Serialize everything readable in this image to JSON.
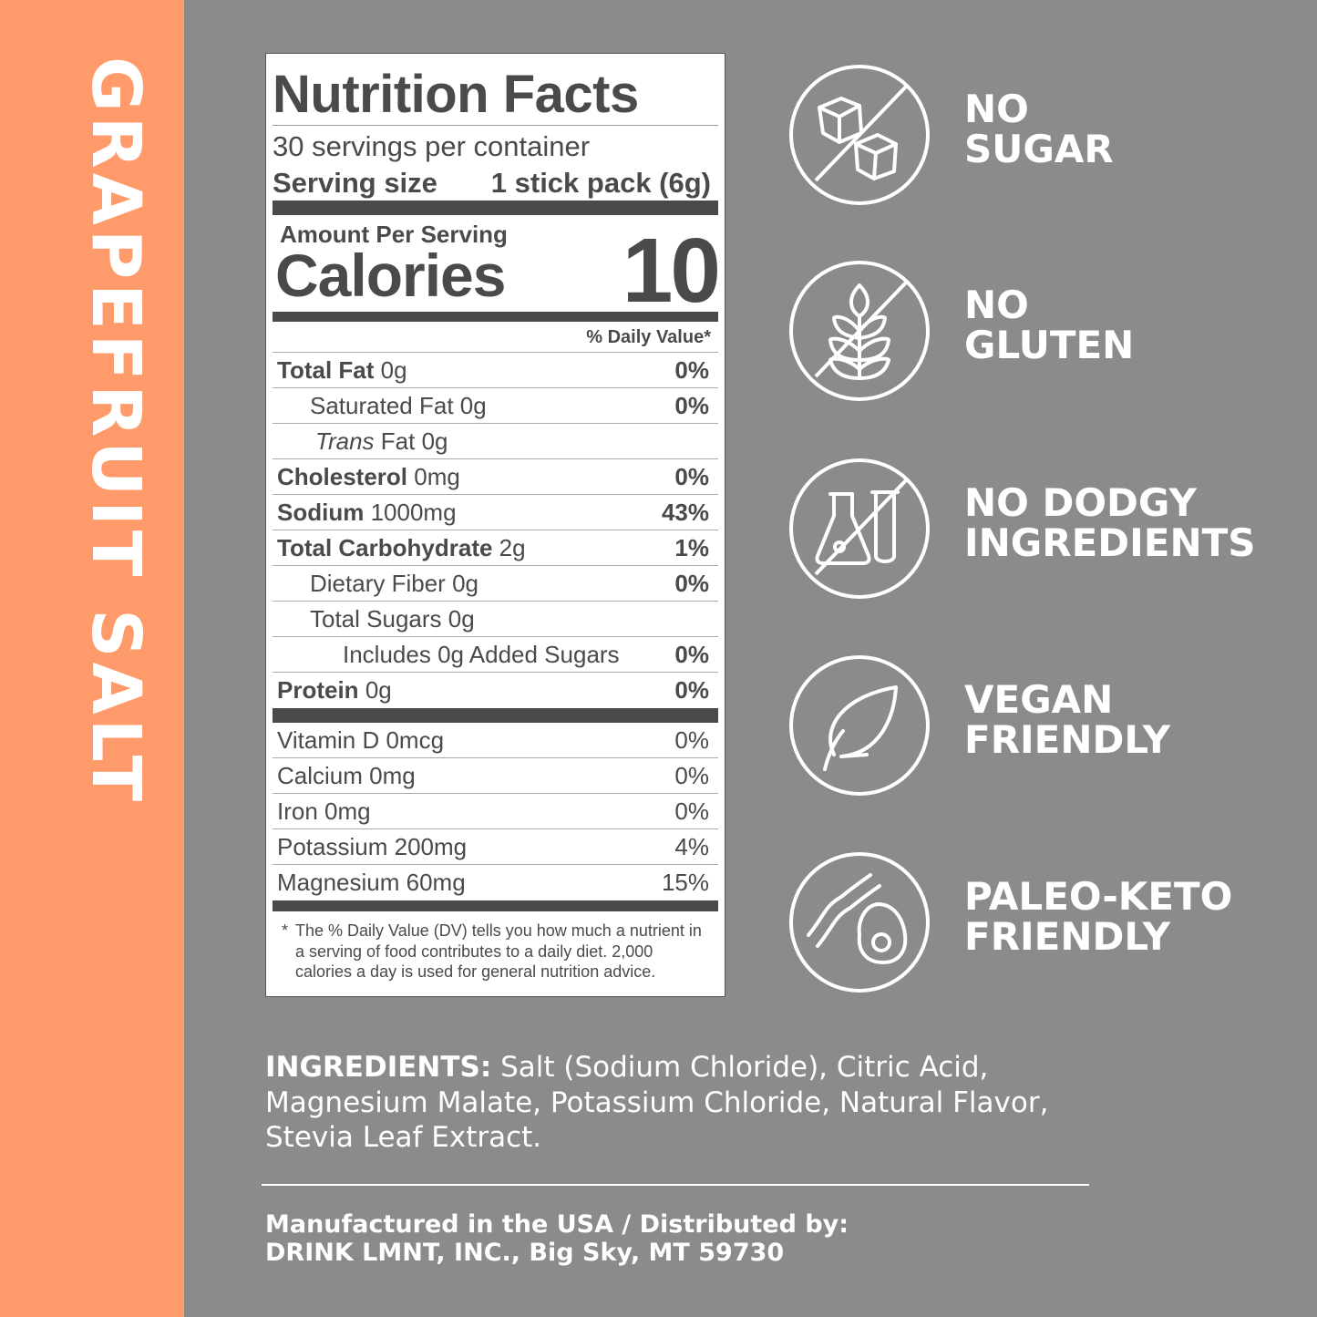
{
  "flavor": "GRAPEFRUIT SALT",
  "colors": {
    "accent": "#ff9b6b",
    "background": "#8a8b8d",
    "label_text": "#4a4a4c"
  },
  "nutrition": {
    "title": "Nutrition Facts",
    "servings": "30 servings per container",
    "serving_size_label": "Serving size",
    "serving_size_value": "1 stick pack (6g)",
    "amount_per_serving": "Amount Per Serving",
    "calories_label": "Calories",
    "calories_value": "10",
    "dv_header": "% Daily Value*",
    "rows": [
      {
        "name": "Total Fat",
        "amount": "0g",
        "dv": "0%",
        "bold": true,
        "indent": 0
      },
      {
        "name": "Saturated Fat",
        "amount": "0g",
        "dv": "0%",
        "bold": false,
        "indent": 1
      },
      {
        "italic": "Trans",
        "name": "Fat",
        "amount": "0g",
        "dv": "",
        "bold": false,
        "indent": 1
      },
      {
        "name": "Cholesterol",
        "amount": "0mg",
        "dv": "0%",
        "bold": true,
        "indent": 0
      },
      {
        "name": "Sodium",
        "amount": "1000mg",
        "dv": "43%",
        "bold": true,
        "indent": 0
      },
      {
        "name": "Total Carbohydrate",
        "amount": "2g",
        "dv": "1%",
        "bold": true,
        "indent": 0
      },
      {
        "name": "Dietary Fiber",
        "amount": "0g",
        "dv": "0%",
        "bold": false,
        "indent": 1
      },
      {
        "name": "Total Sugars",
        "amount": "0g",
        "dv": "",
        "bold": false,
        "indent": 1
      },
      {
        "name": "Includes 0g Added Sugars",
        "amount": "",
        "dv": "0%",
        "bold": false,
        "indent": 2
      },
      {
        "name": "Protein",
        "amount": "0g",
        "dv": "0%",
        "bold": true,
        "indent": 0
      }
    ],
    "vitamins": [
      {
        "name": "Vitamin D 0mcg",
        "dv": "0%"
      },
      {
        "name": "Calcium 0mg",
        "dv": "0%"
      },
      {
        "name": "Iron 0mg",
        "dv": "0%"
      },
      {
        "name": "Potassium 200mg",
        "dv": "4%"
      },
      {
        "name": "Magnesium 60mg",
        "dv": "15%"
      }
    ],
    "footnote_star": "*",
    "footnote": "The % Daily Value (DV) tells you how much a nutrient in a serving of food contributes to a daily diet. 2,000 calories a day is used for general nutrition advice."
  },
  "claims": [
    {
      "icon": "no-sugar-cubes-icon",
      "line1": "NO",
      "line2": "SUGAR"
    },
    {
      "icon": "no-gluten-wheat-icon",
      "line1": "NO",
      "line2": "GLUTEN"
    },
    {
      "icon": "no-chemicals-flask-icon",
      "line1": "NO DODGY",
      "line2": "INGREDIENTS"
    },
    {
      "icon": "leaf-icon",
      "line1": "VEGAN",
      "line2": "FRIENDLY"
    },
    {
      "icon": "bacon-avocado-icon",
      "line1": "PALEO-KETO",
      "line2": "FRIENDLY"
    }
  ],
  "ingredients": {
    "label": "INGREDIENTS:",
    "text": " Salt (Sodium Chloride), Citric Acid, Magnesium Malate, Potassium Chloride, Natural Flavor, Stevia Leaf Extract."
  },
  "manufacturer": {
    "line1": "Manufactured in the USA / Distributed by:",
    "line2": "DRINK LMNT, INC., Big Sky, MT 59730"
  }
}
